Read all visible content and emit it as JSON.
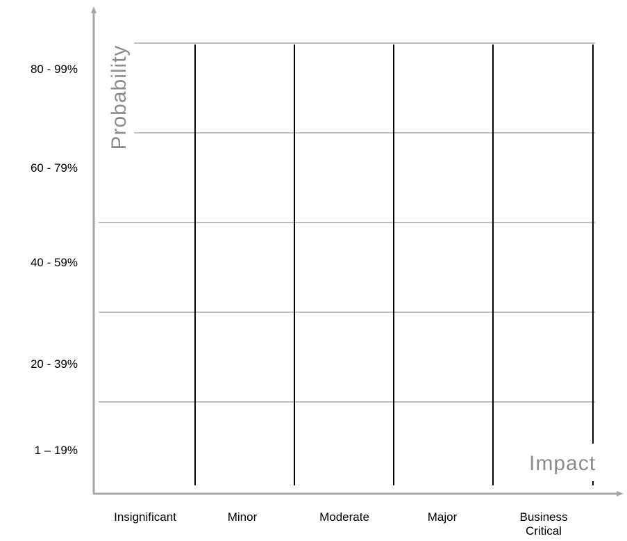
{
  "matrix": {
    "y_axis_title": "Probability",
    "x_axis_title": "Impact",
    "rows": [
      "80 - 99%",
      "60 - 79%",
      "40 - 59%",
      "20 - 39%",
      "1 – 19%"
    ],
    "columns": [
      "Insignificant",
      "Minor",
      "Moderate",
      "Major",
      "Business Critical"
    ]
  },
  "colors": {
    "axis": "#a6a6a6",
    "horizontal_grid": "#999999",
    "vertical_grid": "#000000",
    "axis_title": "#8c8c8c"
  }
}
